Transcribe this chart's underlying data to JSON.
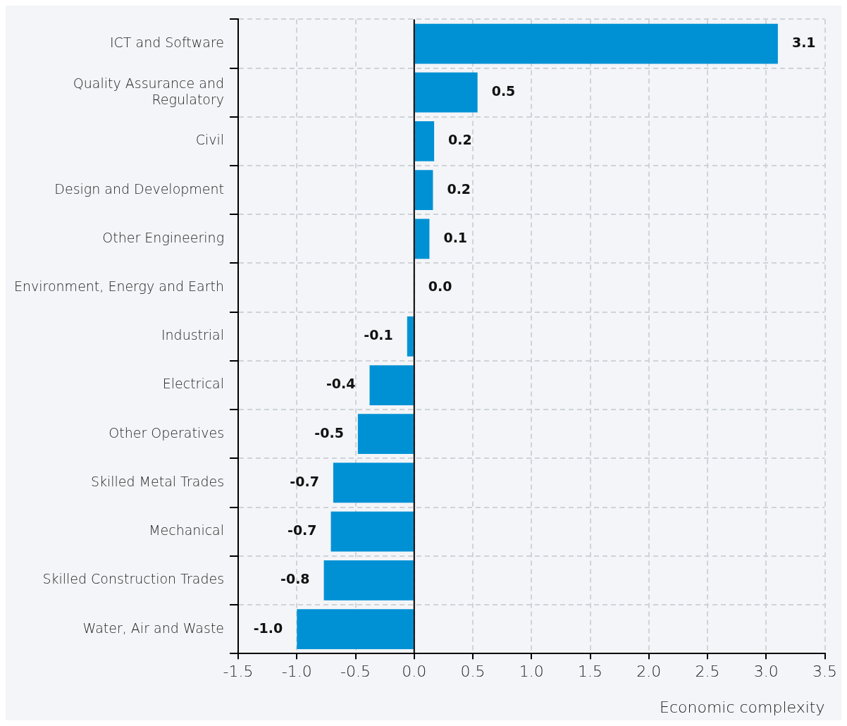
{
  "chart_data": {
    "type": "bar",
    "orientation": "horizontal",
    "xlabel": "Economic complexity",
    "categories": [
      "ICT and Software",
      "Quality Assurance and Regulatory",
      "Civil",
      "Design and Development",
      "Other Engineering",
      "Environment, Energy and Earth",
      "Industrial",
      "Electrical",
      "Other Operatives",
      "Skilled Metal Trades",
      "Mechanical",
      "Skilled Construction Trades",
      "Water, Air and Waste"
    ],
    "values": [
      3.1,
      0.54,
      0.17,
      0.16,
      0.13,
      0.0,
      -0.06,
      -0.38,
      -0.48,
      -0.69,
      -0.71,
      -0.77,
      -1.0
    ],
    "value_labels": [
      "3.1",
      "0.5",
      "0.2",
      "0.2",
      "0.1",
      "0.0",
      "-0.1",
      "-0.4",
      "-0.5",
      "-0.7",
      "-0.7",
      "-0.8",
      "-1.0"
    ],
    "color": "#0091d5",
    "xlim": [
      -1.5,
      3.5
    ],
    "xticks": [
      -1.5,
      {
        "value": -1,
        "label": "-1.0"
      },
      -0.5,
      {
        "value": 0,
        "label": "0.0"
      },
      0.5,
      {
        "value": 1,
        "label": "1.0"
      },
      1.5,
      {
        "value": 2,
        "label": "2.0"
      },
      2.5,
      {
        "value": 3,
        "label": "3.0"
      },
      3.5
    ],
    "grid": true,
    "legend": false
  }
}
